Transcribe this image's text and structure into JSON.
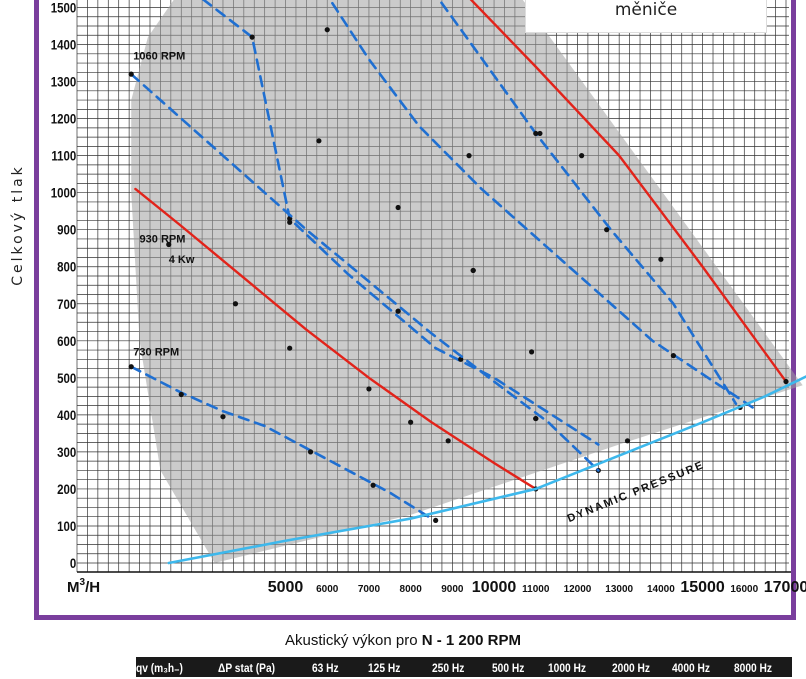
{
  "chart_data": {
    "type": "line",
    "ylabel": "Celkový tlak",
    "xlabel": "M³/H",
    "x_unit_main": "M",
    "x_unit_exp": "3",
    "x_unit_sub": "/H",
    "xlim": [
      0,
      17500
    ],
    "ylim": [
      0,
      1550
    ],
    "y_ticks": [
      0,
      100,
      200,
      300,
      400,
      500,
      600,
      700,
      800,
      900,
      1000,
      1100,
      1200,
      1300,
      1400,
      1500
    ],
    "x_ticks": [
      {
        "value": 5000,
        "label": "5000",
        "major": true
      },
      {
        "value": 6000,
        "label": "6000",
        "major": false
      },
      {
        "value": 7000,
        "label": "7000",
        "major": false
      },
      {
        "value": 8000,
        "label": "8000",
        "major": false
      },
      {
        "value": 9000,
        "label": "9000",
        "major": false
      },
      {
        "value": 10000,
        "label": "10000",
        "major": true
      },
      {
        "value": 11000,
        "label": "11000",
        "major": false
      },
      {
        "value": 12000,
        "label": "12000",
        "major": false
      },
      {
        "value": 13000,
        "label": "13000",
        "major": false
      },
      {
        "value": 14000,
        "label": "14000",
        "major": false
      },
      {
        "value": 15000,
        "label": "15000",
        "major": true
      },
      {
        "value": 16000,
        "label": "16000",
        "major": false
      },
      {
        "value": 17000,
        "label": "17000",
        "major": true
      }
    ],
    "grid": true,
    "operating_region": [
      [
        3300,
        0
      ],
      [
        2000,
        250
      ],
      [
        1500,
        600
      ],
      [
        1300,
        1000
      ],
      [
        1300,
        1250
      ],
      [
        1700,
        1420
      ],
      [
        2500,
        1550
      ],
      [
        10500,
        1550
      ],
      [
        17400,
        480
      ],
      [
        13000,
        320
      ],
      [
        8000,
        130
      ],
      [
        3300,
        0
      ]
    ],
    "series": [
      {
        "name": "",
        "style": "dashed-blue",
        "points": [
          [
            2700,
            1550
          ],
          [
            4200,
            1420
          ],
          [
            5100,
            930
          ],
          [
            6500,
            780
          ],
          [
            8600,
            580
          ],
          [
            10000,
            500
          ],
          [
            12500,
            320
          ]
        ],
        "markers": [
          [
            4200,
            1420
          ],
          [
            5100,
            930
          ],
          [
            7700,
            680
          ],
          [
            9200,
            550
          ],
          [
            11000,
            390
          ],
          [
            12500,
            250
          ]
        ]
      },
      {
        "name": "",
        "style": "dashed-blue",
        "points": [
          [
            5900,
            1550
          ],
          [
            7000,
            1360
          ],
          [
            8200,
            1180
          ],
          [
            9700,
            1010
          ],
          [
            11800,
            800
          ],
          [
            13800,
            600
          ],
          [
            16200,
            420
          ]
        ],
        "markers": [
          [
            6000,
            1440
          ],
          [
            5800,
            1140
          ],
          [
            7700,
            960
          ],
          [
            9500,
            790
          ],
          [
            10900,
            570
          ],
          [
            13200,
            330
          ]
        ]
      },
      {
        "name": "",
        "style": "dashed-blue",
        "points": [
          [
            8500,
            1550
          ],
          [
            9400,
            1410
          ],
          [
            11000,
            1160
          ],
          [
            12800,
            900
          ],
          [
            14300,
            700
          ],
          [
            15800,
            430
          ]
        ],
        "markers": [
          [
            9400,
            1100
          ],
          [
            11000,
            1160
          ],
          [
            12700,
            900
          ],
          [
            14300,
            560
          ],
          [
            15900,
            420
          ]
        ]
      },
      {
        "name": "",
        "style": "dashed-blue",
        "points": [
          [
            1300,
            1320
          ],
          [
            2500,
            1200
          ],
          [
            4000,
            1050
          ],
          [
            5500,
            900
          ],
          [
            7000,
            760
          ],
          [
            8500,
            620
          ],
          [
            10000,
            490
          ],
          [
            11300,
            380
          ],
          [
            12500,
            250
          ]
        ],
        "markers": [
          [
            1300,
            1320
          ],
          [
            5100,
            920
          ],
          [
            7700,
            680
          ],
          [
            9500,
            790
          ],
          [
            11000,
            390
          ]
        ]
      },
      {
        "name": "",
        "style": "dashed-blue",
        "points": [
          [
            1300,
            530
          ],
          [
            2500,
            460
          ],
          [
            3500,
            410
          ],
          [
            4500,
            370
          ],
          [
            5500,
            310
          ],
          [
            6500,
            250
          ],
          [
            7500,
            190
          ],
          [
            8500,
            120
          ]
        ],
        "markers": [
          [
            1300,
            530
          ],
          [
            2500,
            455
          ],
          [
            3500,
            395
          ],
          [
            5600,
            300
          ],
          [
            7100,
            210
          ],
          [
            8600,
            115
          ]
        ]
      },
      {
        "name": "",
        "style": "solid-red",
        "points": [
          [
            9200,
            1550
          ],
          [
            11000,
            1340
          ],
          [
            13000,
            1100
          ],
          [
            15000,
            800
          ],
          [
            17000,
            490
          ]
        ],
        "markers": [
          [
            9300,
            1550
          ],
          [
            11100,
            1160
          ],
          [
            12100,
            1100
          ],
          [
            14000,
            820
          ],
          [
            17000,
            490
          ]
        ]
      },
      {
        "name": "",
        "style": "solid-red",
        "points": [
          [
            1400,
            1010
          ],
          [
            2500,
            910
          ],
          [
            4000,
            770
          ],
          [
            5500,
            630
          ],
          [
            7000,
            500
          ],
          [
            8500,
            380
          ],
          [
            10000,
            270
          ],
          [
            11000,
            200
          ]
        ],
        "markers": [
          [
            2200,
            860
          ],
          [
            3800,
            700
          ],
          [
            5100,
            580
          ],
          [
            7000,
            470
          ],
          [
            8000,
            380
          ],
          [
            8900,
            330
          ],
          [
            11000,
            200
          ]
        ]
      },
      {
        "name": "",
        "style": "solid-cyan",
        "points": [
          [
            2200,
            0
          ],
          [
            5000,
            60
          ],
          [
            8000,
            120
          ],
          [
            11000,
            200
          ],
          [
            13000,
            290
          ],
          [
            15000,
            380
          ],
          [
            16500,
            450
          ],
          [
            17600,
            510
          ]
        ],
        "markers": []
      }
    ],
    "annotations": [
      {
        "text": "1060 RPM",
        "x": 1350,
        "y": 1360
      },
      {
        "text": "930 RPM",
        "x": 1500,
        "y": 865
      },
      {
        "text": "4 Kw",
        "x": 2200,
        "y": 810
      },
      {
        "text": "730 RPM",
        "x": 1350,
        "y": 560
      },
      {
        "text": "DYNAMIC PRESSURE",
        "x": 11800,
        "y": 110,
        "rotate": -22
      }
    ]
  },
  "note": {
    "text": "měniče"
  },
  "acoustic": {
    "title_prefix": "Akustický výkon pro ",
    "title_bold": "N - 1 200 RPM",
    "headers": [
      "qv (m₃h₋)",
      "ΔP stat (Pa)",
      "63 Hz",
      "125 Hz",
      "250 Hz",
      "500 Hz",
      "1000 Hz",
      "2000 Hz",
      "4000 Hz",
      "8000 Hz"
    ]
  }
}
